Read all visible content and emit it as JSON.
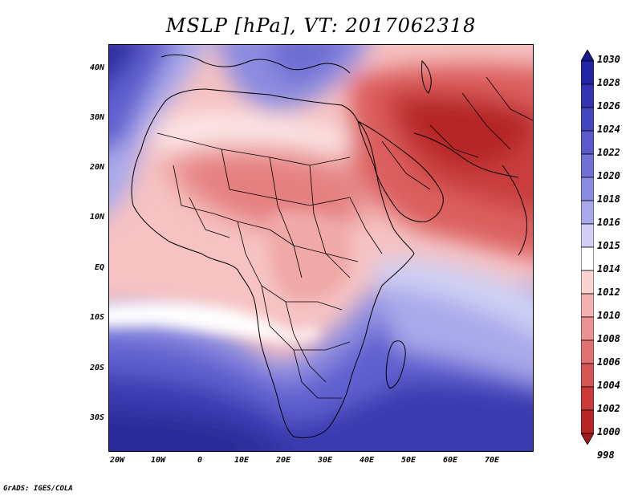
{
  "title": "MSLP [hPa], VT: 2017062318",
  "footer": "GrADS: IGES/COLA",
  "lat_labels": [
    "40N",
    "30N",
    "20N",
    "10N",
    "EQ",
    "10S",
    "20S",
    "30S"
  ],
  "lon_labels": [
    "20W",
    "10W",
    "0",
    "10E",
    "20E",
    "30E",
    "40E",
    "50E",
    "60E",
    "70E"
  ],
  "colorbar": {
    "levels": [
      "1030",
      "1028",
      "1026",
      "1024",
      "1022",
      "1020",
      "1018",
      "1016",
      "1015",
      "1014",
      "1012",
      "1010",
      "1008",
      "1006",
      "1004",
      "1002",
      "1000",
      "998"
    ],
    "colors": [
      "#1a1a8c",
      "#2424a6",
      "#3333b3",
      "#4545c2",
      "#5a5acc",
      "#7070d6",
      "#8a8ae0",
      "#a8a8ea",
      "#cfd0f4",
      "#ffffff",
      "#fad2d2",
      "#f4b3b3",
      "#eb9393",
      "#e07272",
      "#d65555",
      "#cc3b3b",
      "#b82626",
      "#a31a1a"
    ]
  },
  "map": {
    "region": "Africa and Middle East",
    "colors": {
      "deep_blue": "#2b2ba0",
      "mid_blue": "#5f5fcf",
      "light_blue": "#a9a9eb",
      "white": "#ffffff",
      "pink": "#f6c2c2",
      "light_red": "#ec9d9d",
      "red": "#dc5f5f",
      "dark_red": "#b52828",
      "border": "#000000"
    }
  }
}
